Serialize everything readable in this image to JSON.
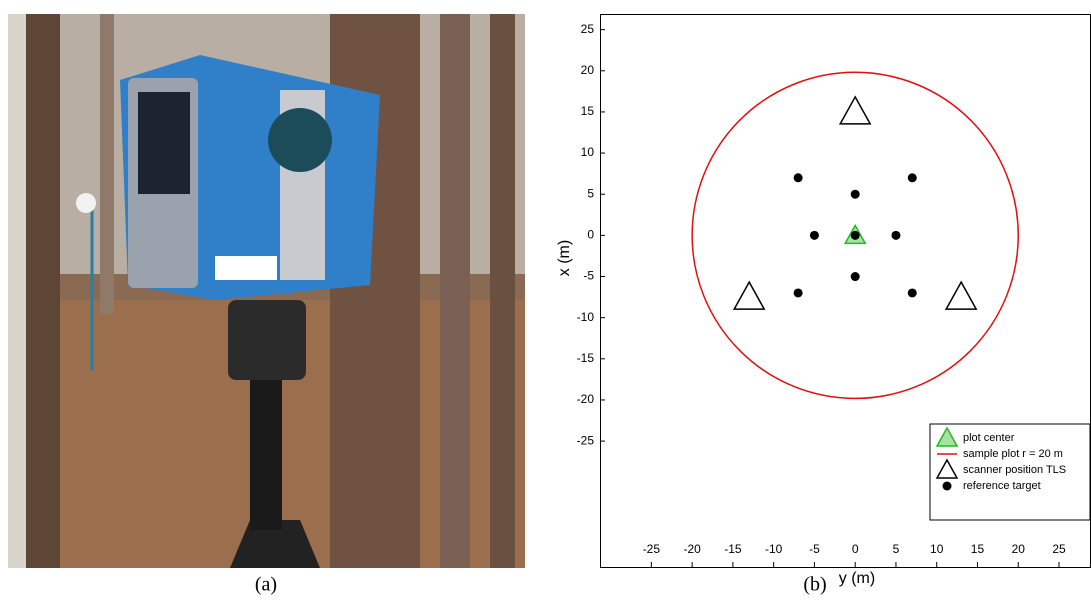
{
  "captions": [
    "(a)",
    "(b)"
  ],
  "chart_data": {
    "type": "scatter",
    "xlabel": "y (m)",
    "ylabel": "x (m)",
    "xlim": [
      -31.3,
      28.8
    ],
    "ylim": [
      -40.3,
      26.9
    ],
    "xticks": [
      -25,
      -20,
      -15,
      -10,
      -5,
      0,
      5,
      10,
      15,
      20,
      25
    ],
    "yticks": [
      -25,
      -20,
      -15,
      -10,
      -5,
      0,
      5,
      10,
      15,
      20,
      25
    ],
    "legend": "lower right",
    "series": [
      {
        "name": "plot center",
        "color": "#22bb22",
        "marker": "triangle",
        "x": [
          0
        ],
        "y": [
          0
        ]
      },
      {
        "name": "sample plot r = 20 m",
        "color": "#e01010",
        "marker": "circle-line",
        "x": [
          0
        ],
        "y": [
          0
        ],
        "radius": [
          20
        ]
      },
      {
        "name": "scanner position TLS",
        "color": "#000000",
        "marker": "triangle",
        "x": [
          0,
          -13,
          13
        ],
        "y": [
          15,
          -7.5,
          -7.5
        ]
      },
      {
        "name": "reference target",
        "color": "#000000",
        "marker": "dot",
        "x": [
          -7,
          0,
          7,
          -5,
          5,
          0,
          0,
          -7,
          7
        ],
        "y": [
          7,
          5,
          7,
          0,
          0,
          0,
          -5,
          -7,
          -7
        ]
      }
    ]
  }
}
